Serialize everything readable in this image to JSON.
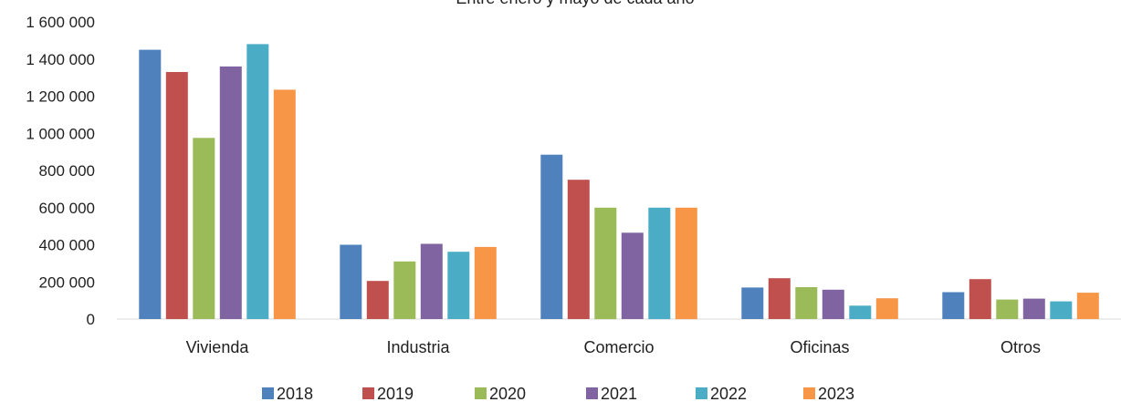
{
  "chart_data": {
    "type": "bar",
    "title": "",
    "subtitle": "Entre enero y mayo de cada año",
    "xlabel": "",
    "ylabel": "",
    "ylim": [
      0,
      1600000
    ],
    "yticks": [
      0,
      200000,
      400000,
      600000,
      800000,
      1000000,
      1200000,
      1400000,
      1600000
    ],
    "ytick_labels": [
      "0",
      "200 000",
      "400 000",
      "600 000",
      "800 000",
      "1 000 000",
      "1 200 000",
      "1 400 000",
      "1 600 000"
    ],
    "categories": [
      "Vivienda",
      "Industria",
      "Comercio",
      "Oficinas",
      "Otros"
    ],
    "grid": false,
    "legend_position": "bottom",
    "series": [
      {
        "name": "2018",
        "color": "#4F81BD",
        "values": [
          1450000,
          400000,
          885000,
          170000,
          145000
        ]
      },
      {
        "name": "2019",
        "color": "#C0504D",
        "values": [
          1330000,
          205000,
          750000,
          220000,
          215000
        ]
      },
      {
        "name": "2020",
        "color": "#9BBB59",
        "values": [
          975000,
          310000,
          600000,
          172000,
          105000
        ]
      },
      {
        "name": "2021",
        "color": "#8064A2",
        "values": [
          1360000,
          405000,
          465000,
          158000,
          110000
        ]
      },
      {
        "name": "2022",
        "color": "#4BACC6",
        "values": [
          1480000,
          362000,
          600000,
          72000,
          95000
        ]
      },
      {
        "name": "2023",
        "color": "#F79646",
        "values": [
          1235000,
          388000,
          600000,
          112000,
          142000
        ]
      }
    ]
  }
}
